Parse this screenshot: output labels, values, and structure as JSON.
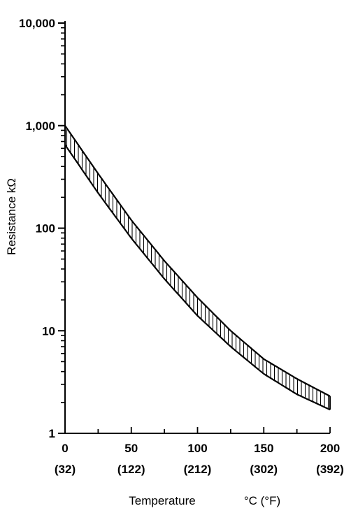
{
  "chart_data": {
    "type": "area",
    "title": "",
    "xlabel": "Temperature",
    "xlabel_units": "°C (°F)",
    "ylabel": "Resistance kΩ",
    "xlim": [
      0,
      200
    ],
    "ylim": [
      1,
      10000
    ],
    "y_scale": "log",
    "grid": false,
    "x_ticks": [
      {
        "value": 0,
        "label": "0",
        "label_f": "(32)"
      },
      {
        "value": 50,
        "label": "50",
        "label_f": "(122)"
      },
      {
        "value": 100,
        "label": "100",
        "label_f": "(212)"
      },
      {
        "value": 150,
        "label": "150",
        "label_f": "(302)"
      },
      {
        "value": 200,
        "label": "200",
        "label_f": "(392)"
      }
    ],
    "y_ticks": [
      {
        "value": 1,
        "label": "1"
      },
      {
        "value": 10,
        "label": "10"
      },
      {
        "value": 100,
        "label": "100"
      },
      {
        "value": 1000,
        "label": "1,000"
      },
      {
        "value": 10000,
        "label": "10,000"
      }
    ],
    "x": [
      0,
      25,
      50,
      75,
      100,
      125,
      150,
      175,
      200
    ],
    "series": [
      {
        "values": [
          1000,
          340,
          120,
          48,
          21,
          10,
          5.3,
          3.4,
          2.3
        ]
      },
      {
        "values": [
          650,
          220,
          80,
          32,
          14,
          7,
          3.8,
          2.4,
          1.7
        ]
      }
    ],
    "style": {
      "line_color": "#000000",
      "band_fill": "hatched-vertical"
    }
  }
}
